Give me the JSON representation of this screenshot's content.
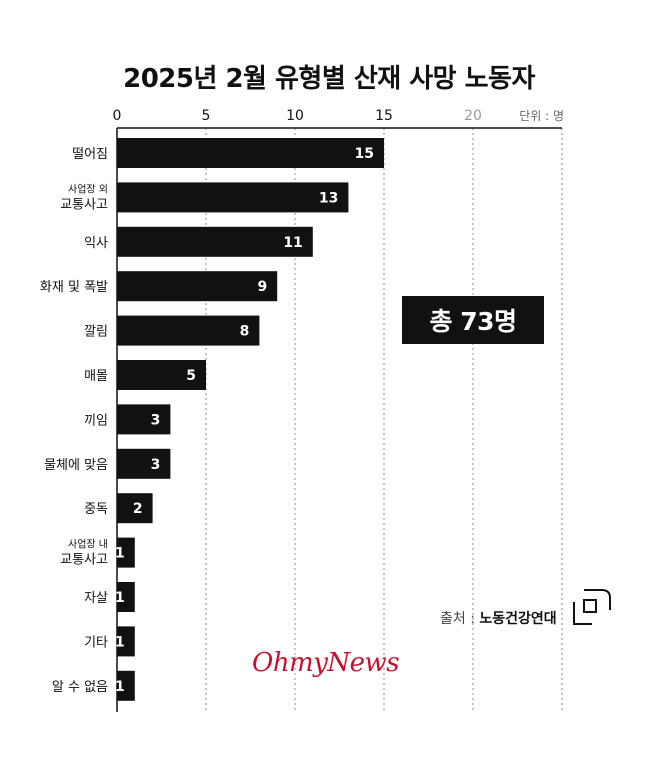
{
  "title": "2025년 2월 유형별 산재 사망 노동자",
  "unit_label": "단위 : 명",
  "total_label": "총 73명",
  "source_label": "출처 :",
  "source_org": "노동건강연대",
  "brand": "OhmyNews",
  "colors": {
    "bar": "#111111",
    "bar_text": "#ffffff",
    "axis_text": "#111111",
    "muted_tick": "#999999",
    "grid": "#888888",
    "brand": "#c8102e"
  },
  "chart_data": {
    "type": "bar",
    "orientation": "horizontal",
    "title": "2025년 2월 유형별 산재 사망 노동자",
    "categories": [
      [
        "떨어짐"
      ],
      [
        "사업장 외",
        "교통사고"
      ],
      [
        "익사"
      ],
      [
        "화재 및 폭발"
      ],
      [
        "깔림"
      ],
      [
        "매몰"
      ],
      [
        "끼임"
      ],
      [
        "물체에 맞음"
      ],
      [
        "중독"
      ],
      [
        "사업장 내",
        "교통사고"
      ],
      [
        "자살"
      ],
      [
        "기타"
      ],
      [
        "알 수 없음"
      ]
    ],
    "values": [
      15,
      13,
      11,
      9,
      8,
      5,
      3,
      3,
      2,
      1,
      1,
      1,
      1
    ],
    "xlim": [
      0,
      25
    ],
    "xticks": [
      0,
      5,
      10,
      15,
      20
    ],
    "grid": true,
    "data_labels": true
  }
}
